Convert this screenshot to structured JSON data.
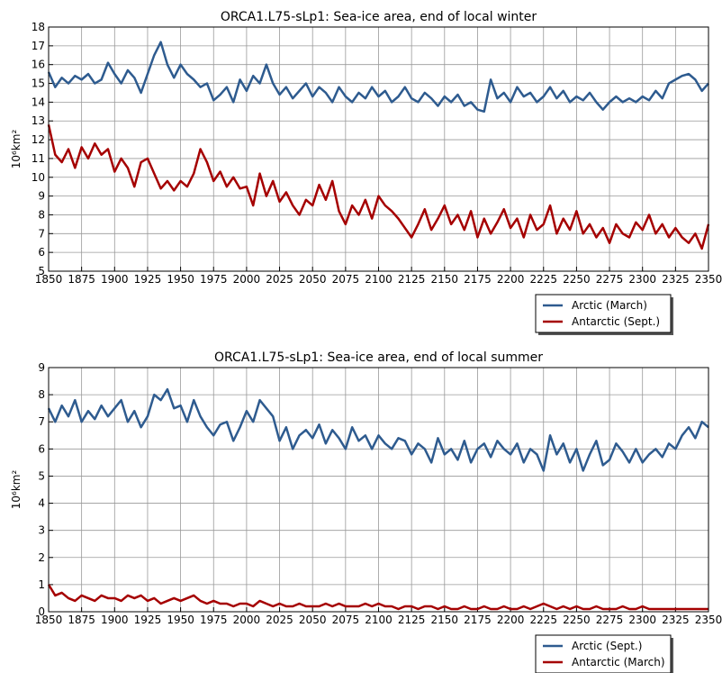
{
  "chart_data": [
    {
      "type": "line",
      "title": "ORCA1.L75-sLp1: Sea-ice area, end of local winter",
      "y_label": "10⁶km²",
      "x": [
        1850,
        1855,
        1860,
        1865,
        1870,
        1875,
        1880,
        1885,
        1890,
        1895,
        1900,
        1905,
        1910,
        1915,
        1920,
        1925,
        1930,
        1935,
        1940,
        1945,
        1950,
        1955,
        1960,
        1965,
        1970,
        1975,
        1980,
        1985,
        1990,
        1995,
        2000,
        2005,
        2010,
        2015,
        2020,
        2025,
        2030,
        2035,
        2040,
        2045,
        2050,
        2055,
        2060,
        2065,
        2070,
        2075,
        2080,
        2085,
        2090,
        2095,
        2100,
        2105,
        2110,
        2115,
        2120,
        2125,
        2130,
        2135,
        2140,
        2145,
        2150,
        2155,
        2160,
        2165,
        2170,
        2175,
        2180,
        2185,
        2190,
        2195,
        2200,
        2205,
        2210,
        2215,
        2220,
        2225,
        2230,
        2235,
        2240,
        2245,
        2250,
        2255,
        2260,
        2265,
        2270,
        2275,
        2280,
        2285,
        2290,
        2295,
        2300,
        2305,
        2310,
        2315,
        2320,
        2325,
        2330,
        2335,
        2340,
        2345,
        2350
      ],
      "series": [
        {
          "name": "Arctic (March)",
          "color": "#2e5b8f",
          "values": [
            15.6,
            14.8,
            15.3,
            15.0,
            15.4,
            15.2,
            15.5,
            15.0,
            15.2,
            16.1,
            15.5,
            15.0,
            15.7,
            15.3,
            14.5,
            15.5,
            16.5,
            17.2,
            16.0,
            15.3,
            16.0,
            15.5,
            15.2,
            14.8,
            15.0,
            14.1,
            14.4,
            14.8,
            14.0,
            15.2,
            14.6,
            15.4,
            15.0,
            16.0,
            15.0,
            14.4,
            14.8,
            14.2,
            14.6,
            15.0,
            14.3,
            14.8,
            14.5,
            14.0,
            14.8,
            14.3,
            14.0,
            14.5,
            14.2,
            14.8,
            14.3,
            14.6,
            14.0,
            14.3,
            14.8,
            14.2,
            14.0,
            14.5,
            14.2,
            13.8,
            14.3,
            14.0,
            14.4,
            13.8,
            14.0,
            13.6,
            13.5,
            15.2,
            14.2,
            14.5,
            14.0,
            14.8,
            14.3,
            14.5,
            14.0,
            14.3,
            14.8,
            14.2,
            14.6,
            14.0,
            14.3,
            14.1,
            14.5,
            14.0,
            13.6,
            14.0,
            14.3,
            14.0,
            14.2,
            14.0,
            14.3,
            14.1,
            14.6,
            14.2,
            15.0,
            15.2,
            15.4,
            15.5,
            15.2,
            14.6,
            15.0
          ]
        },
        {
          "name": "Antarctic (Sept.)",
          "color": "#a50000",
          "values": [
            12.8,
            11.2,
            10.8,
            11.5,
            10.5,
            11.6,
            11.0,
            11.8,
            11.2,
            11.5,
            10.3,
            11.0,
            10.5,
            9.5,
            10.8,
            11.0,
            10.2,
            9.4,
            9.8,
            9.3,
            9.8,
            9.5,
            10.2,
            11.5,
            10.8,
            9.8,
            10.3,
            9.5,
            10.0,
            9.4,
            9.5,
            8.5,
            10.2,
            9.0,
            9.8,
            8.7,
            9.2,
            8.5,
            8.0,
            8.8,
            8.5,
            9.6,
            8.8,
            9.8,
            8.2,
            7.5,
            8.5,
            8.0,
            8.8,
            7.8,
            9.0,
            8.5,
            8.2,
            7.8,
            7.3,
            6.8,
            7.5,
            8.3,
            7.2,
            7.8,
            8.5,
            7.5,
            8.0,
            7.2,
            8.2,
            6.8,
            7.8,
            7.0,
            7.6,
            8.3,
            7.3,
            7.8,
            6.8,
            8.0,
            7.2,
            7.5,
            8.5,
            7.0,
            7.8,
            7.2,
            8.2,
            7.0,
            7.5,
            6.8,
            7.3,
            6.5,
            7.5,
            7.0,
            6.8,
            7.6,
            7.2,
            8.0,
            7.0,
            7.5,
            6.8,
            7.3,
            6.8,
            6.5,
            7.0,
            6.2,
            7.5
          ]
        }
      ],
      "xlim": [
        1850,
        2350
      ],
      "xticks": [
        1850,
        1875,
        1900,
        1925,
        1950,
        1975,
        2000,
        2025,
        2050,
        2075,
        2100,
        2125,
        2150,
        2175,
        2200,
        2225,
        2250,
        2275,
        2300,
        2325,
        2350
      ],
      "ylim": [
        5,
        18
      ],
      "yticks": [
        5,
        6,
        7,
        8,
        9,
        10,
        11,
        12,
        13,
        14,
        15,
        16,
        17,
        18
      ],
      "grid": true,
      "legend": "below right"
    },
    {
      "type": "line",
      "title": "ORCA1.L75-sLp1: Sea-ice area, end of local summer",
      "y_label": "10⁶km²",
      "x": [
        1850,
        1855,
        1860,
        1865,
        1870,
        1875,
        1880,
        1885,
        1890,
        1895,
        1900,
        1905,
        1910,
        1915,
        1920,
        1925,
        1930,
        1935,
        1940,
        1945,
        1950,
        1955,
        1960,
        1965,
        1970,
        1975,
        1980,
        1985,
        1990,
        1995,
        2000,
        2005,
        2010,
        2015,
        2020,
        2025,
        2030,
        2035,
        2040,
        2045,
        2050,
        2055,
        2060,
        2065,
        2070,
        2075,
        2080,
        2085,
        2090,
        2095,
        2100,
        2105,
        2110,
        2115,
        2120,
        2125,
        2130,
        2135,
        2140,
        2145,
        2150,
        2155,
        2160,
        2165,
        2170,
        2175,
        2180,
        2185,
        2190,
        2195,
        2200,
        2205,
        2210,
        2215,
        2220,
        2225,
        2230,
        2235,
        2240,
        2245,
        2250,
        2255,
        2260,
        2265,
        2270,
        2275,
        2280,
        2285,
        2290,
        2295,
        2300,
        2305,
        2310,
        2315,
        2320,
        2325,
        2330,
        2335,
        2340,
        2345,
        2350
      ],
      "series": [
        {
          "name": "Arctic (Sept.)",
          "color": "#2e5b8f",
          "values": [
            7.5,
            7.0,
            7.6,
            7.2,
            7.8,
            7.0,
            7.4,
            7.1,
            7.6,
            7.2,
            7.5,
            7.8,
            7.0,
            7.4,
            6.8,
            7.2,
            8.0,
            7.8,
            8.2,
            7.5,
            7.6,
            7.0,
            7.8,
            7.2,
            6.8,
            6.5,
            6.9,
            7.0,
            6.3,
            6.8,
            7.4,
            7.0,
            7.8,
            7.5,
            7.2,
            6.3,
            6.8,
            6.0,
            6.5,
            6.7,
            6.4,
            6.9,
            6.2,
            6.7,
            6.4,
            6.0,
            6.8,
            6.3,
            6.5,
            6.0,
            6.5,
            6.2,
            6.0,
            6.4,
            6.3,
            5.8,
            6.2,
            6.0,
            5.5,
            6.4,
            5.8,
            6.0,
            5.6,
            6.3,
            5.5,
            6.0,
            6.2,
            5.7,
            6.3,
            6.0,
            5.8,
            6.2,
            5.5,
            6.0,
            5.8,
            5.2,
            6.5,
            5.8,
            6.2,
            5.5,
            6.0,
            5.2,
            5.8,
            6.3,
            5.4,
            5.6,
            6.2,
            5.9,
            5.5,
            6.0,
            5.5,
            5.8,
            6.0,
            5.7,
            6.2,
            6.0,
            6.5,
            6.8,
            6.4,
            7.0,
            6.8
          ]
        },
        {
          "name": "Antarctic (March)",
          "color": "#a50000",
          "values": [
            1.0,
            0.6,
            0.7,
            0.5,
            0.4,
            0.6,
            0.5,
            0.4,
            0.6,
            0.5,
            0.5,
            0.4,
            0.6,
            0.5,
            0.6,
            0.4,
            0.5,
            0.3,
            0.4,
            0.5,
            0.4,
            0.5,
            0.6,
            0.4,
            0.3,
            0.4,
            0.3,
            0.3,
            0.2,
            0.3,
            0.3,
            0.2,
            0.4,
            0.3,
            0.2,
            0.3,
            0.2,
            0.2,
            0.3,
            0.2,
            0.2,
            0.2,
            0.3,
            0.2,
            0.3,
            0.2,
            0.2,
            0.2,
            0.3,
            0.2,
            0.3,
            0.2,
            0.2,
            0.1,
            0.2,
            0.2,
            0.1,
            0.2,
            0.2,
            0.1,
            0.2,
            0.1,
            0.1,
            0.2,
            0.1,
            0.1,
            0.2,
            0.1,
            0.1,
            0.2,
            0.1,
            0.1,
            0.2,
            0.1,
            0.2,
            0.3,
            0.2,
            0.1,
            0.2,
            0.1,
            0.2,
            0.1,
            0.1,
            0.2,
            0.1,
            0.1,
            0.1,
            0.2,
            0.1,
            0.1,
            0.2,
            0.1,
            0.1,
            0.1,
            0.1,
            0.1,
            0.1,
            0.1,
            0.1,
            0.1,
            0.1
          ]
        }
      ],
      "xlim": [
        1850,
        2350
      ],
      "xticks": [
        1850,
        1875,
        1900,
        1925,
        1950,
        1975,
        2000,
        2025,
        2050,
        2075,
        2100,
        2125,
        2150,
        2175,
        2200,
        2225,
        2250,
        2275,
        2300,
        2325,
        2350
      ],
      "ylim": [
        0,
        9
      ],
      "yticks": [
        0,
        1,
        2,
        3,
        4,
        5,
        6,
        7,
        8,
        9
      ],
      "grid": true,
      "legend": "below right"
    }
  ]
}
